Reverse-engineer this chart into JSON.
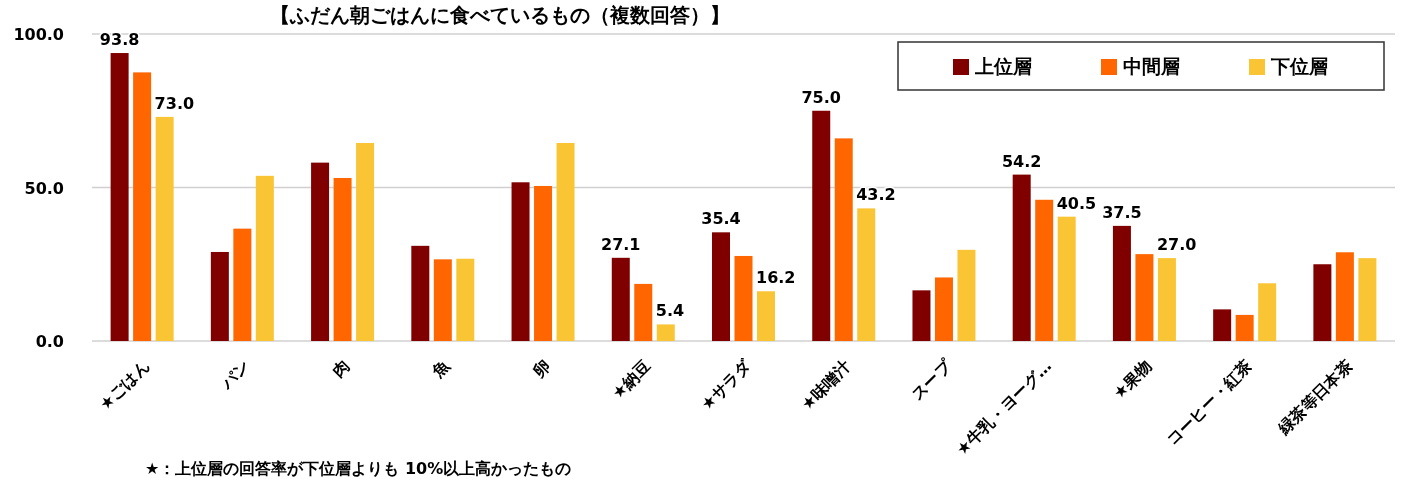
{
  "chart_data": {
    "type": "bar",
    "title": "【ふだん朝ごはんに食べているもの（複数回答）】",
    "categories": [
      "★ごはん",
      "パン",
      "肉",
      "魚",
      "卵",
      "★納豆",
      "★サラダ",
      "★味噌汁",
      "スープ",
      "★牛乳・ヨーグ…",
      "★果物",
      "コーヒー・紅茶",
      "緑茶等日本茶"
    ],
    "series": [
      {
        "name": "上位層",
        "color": "#800000",
        "values": [
          93.8,
          29.0,
          58.1,
          31.0,
          51.7,
          27.1,
          35.4,
          75.0,
          16.5,
          54.2,
          37.5,
          10.3,
          25.0
        ],
        "value_labels": [
          "93.8",
          null,
          null,
          null,
          null,
          "27.1",
          "35.4",
          "75.0",
          null,
          "54.2",
          "37.5",
          null,
          null
        ]
      },
      {
        "name": "中間層",
        "color": "#ff6600",
        "values": [
          87.5,
          36.6,
          53.1,
          26.6,
          50.5,
          18.6,
          27.7,
          66.0,
          20.7,
          46.0,
          28.3,
          8.5,
          28.9
        ]
      },
      {
        "name": "下位層",
        "color": "#f9c535",
        "values": [
          73.0,
          53.8,
          64.5,
          26.8,
          64.5,
          5.4,
          16.2,
          43.2,
          29.7,
          40.5,
          27.0,
          18.8,
          27.0
        ],
        "value_labels": [
          "73.0",
          null,
          null,
          null,
          null,
          "5.4",
          "16.2",
          "43.2",
          null,
          "40.5",
          "27.0",
          null,
          null
        ]
      }
    ],
    "ylim": [
      0,
      100
    ],
    "yticks": [
      {
        "value": 0,
        "label": "0.0"
      },
      {
        "value": 50,
        "label": "50.0"
      },
      {
        "value": 100,
        "label": "100.0"
      }
    ],
    "grid": "y",
    "legend": "top right",
    "annotations": [
      "★：上位層の回答率が下位層よりも 10%以上高かったもの"
    ]
  }
}
